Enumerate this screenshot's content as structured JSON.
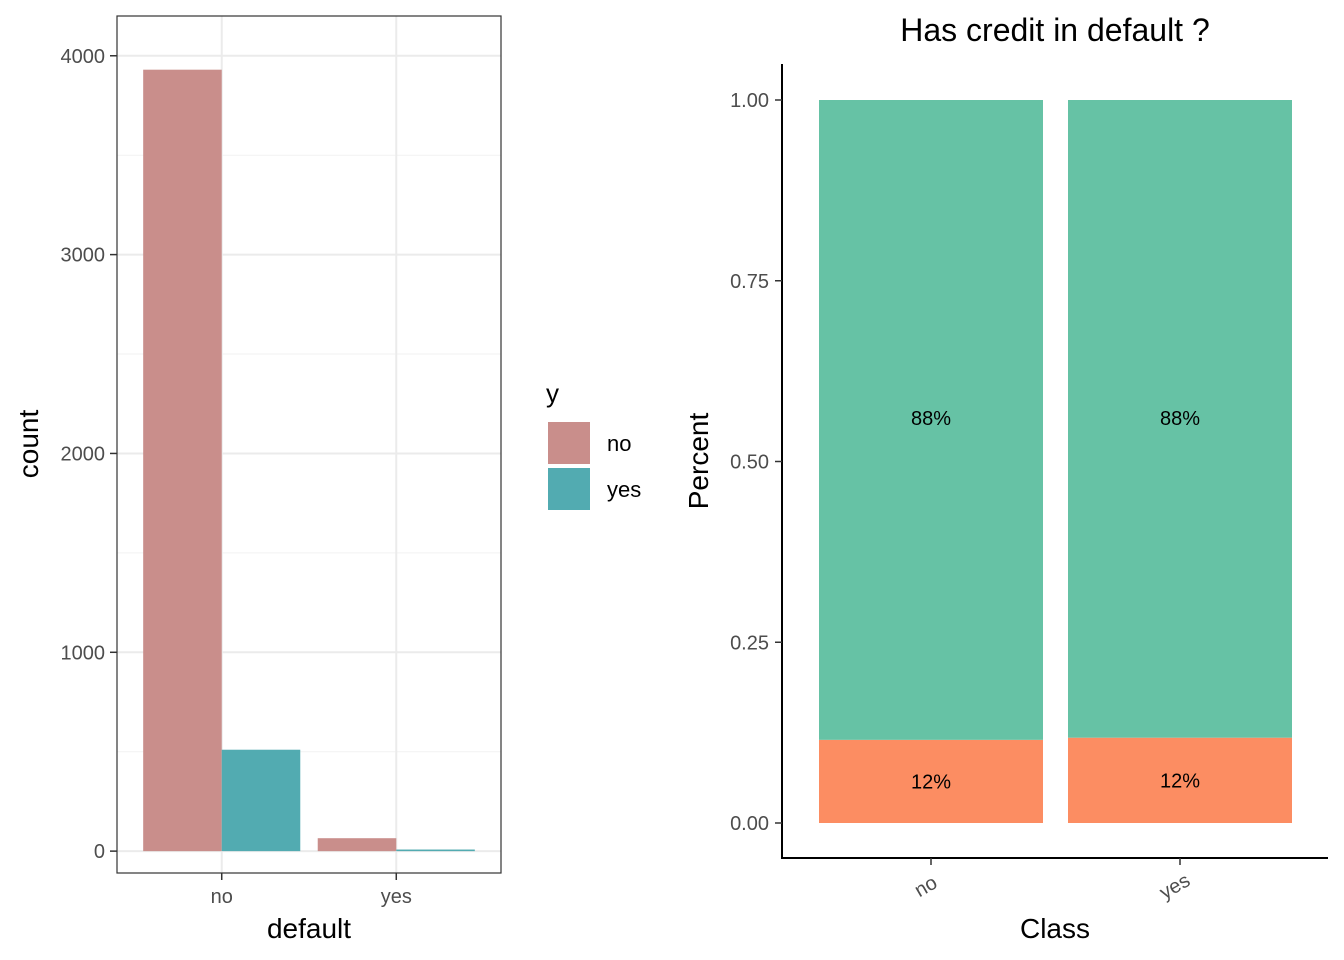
{
  "chart_data": [
    {
      "type": "bar",
      "title": "",
      "xlabel": "default",
      "ylabel": "count",
      "categories": [
        "no",
        "yes"
      ],
      "ylim": [
        0,
        4200
      ],
      "yticks": [
        "0",
        "1000",
        "2000",
        "3000",
        "4000"
      ],
      "ytick_values": [
        0,
        1000,
        2000,
        3000,
        4000
      ],
      "grid": true,
      "legend": {
        "title": "y",
        "position": "right"
      },
      "series": [
        {
          "name": "no",
          "color": "#c98e8b",
          "values": [
            3930,
            65
          ]
        },
        {
          "name": "yes",
          "color": "#52abb1",
          "values": [
            510,
            8
          ]
        }
      ]
    },
    {
      "type": "bar",
      "stacked": true,
      "title": "Has credit in default ?",
      "xlabel": "Class",
      "ylabel": "Percent",
      "categories": [
        "no",
        "yes"
      ],
      "ylim": [
        0,
        1.05
      ],
      "yticks": [
        "0.00",
        "0.25",
        "0.50",
        "0.75",
        "1.00"
      ],
      "ytick_values": [
        0,
        0.25,
        0.5,
        0.75,
        1.0
      ],
      "grid": false,
      "series": [
        {
          "color": "#fc8d62",
          "values": [
            0.115,
            0.118
          ],
          "labels": [
            "12%",
            "12%"
          ]
        },
        {
          "color": "#66c2a5",
          "values": [
            0.885,
            0.882
          ],
          "labels": [
            "88%",
            "88%"
          ]
        }
      ]
    }
  ]
}
